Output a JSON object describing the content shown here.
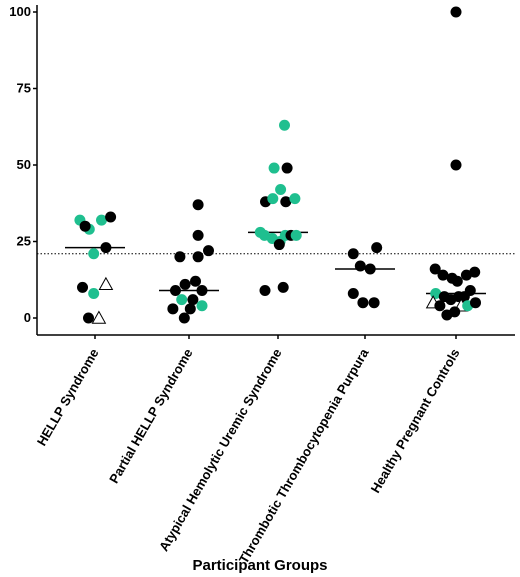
{
  "chart_data": {
    "type": "scatter",
    "title": "",
    "xlabel": "Participant Groups",
    "ylabel": "",
    "ylim": [
      0,
      100
    ],
    "yticks": [
      0,
      25,
      50,
      75,
      100
    ],
    "categories": [
      "HELLP Syndrome",
      "Partial HELLP Syndrome",
      "Atypical Hemolytic Uremic Syndrome",
      "Thrombotic Thrombocytopenia Purpura",
      "Healthy Pregnant Controls"
    ],
    "threshold": 21,
    "medians": [
      23,
      9,
      28,
      16,
      8
    ],
    "grid": false,
    "legend": "none",
    "colors": {
      "black": "#000000",
      "green": "#1fbf8f",
      "open": "#ffffff"
    },
    "points": [
      {
        "group": 0,
        "offset": -0.58,
        "y": 32,
        "marker": "green"
      },
      {
        "group": 0,
        "offset": -0.22,
        "y": 29,
        "marker": "green"
      },
      {
        "group": 0,
        "offset": -0.38,
        "y": 30,
        "marker": "black"
      },
      {
        "group": 0,
        "offset": 0.25,
        "y": 32,
        "marker": "green"
      },
      {
        "group": 0,
        "offset": 0.6,
        "y": 33,
        "marker": "black"
      },
      {
        "group": 0,
        "offset": -0.05,
        "y": 21,
        "marker": "green"
      },
      {
        "group": 0,
        "offset": 0.42,
        "y": 23,
        "marker": "black"
      },
      {
        "group": 0,
        "offset": -0.48,
        "y": 10,
        "marker": "black"
      },
      {
        "group": 0,
        "offset": 0.42,
        "y": 11,
        "marker": "open"
      },
      {
        "group": 0,
        "offset": -0.05,
        "y": 8,
        "marker": "green"
      },
      {
        "group": 0,
        "offset": -0.25,
        "y": 0,
        "marker": "black"
      },
      {
        "group": 0,
        "offset": 0.15,
        "y": 0,
        "marker": "open"
      },
      {
        "group": 1,
        "offset": 0.35,
        "y": 37,
        "marker": "black"
      },
      {
        "group": 1,
        "offset": 0.35,
        "y": 27,
        "marker": "black"
      },
      {
        "group": 1,
        "offset": 0.75,
        "y": 22,
        "marker": "black"
      },
      {
        "group": 1,
        "offset": -0.35,
        "y": 20,
        "marker": "black"
      },
      {
        "group": 1,
        "offset": 0.35,
        "y": 20,
        "marker": "black"
      },
      {
        "group": 1,
        "offset": -0.15,
        "y": 11,
        "marker": "black"
      },
      {
        "group": 1,
        "offset": 0.25,
        "y": 12,
        "marker": "black"
      },
      {
        "group": 1,
        "offset": -0.52,
        "y": 9,
        "marker": "black"
      },
      {
        "group": 1,
        "offset": 0.5,
        "y": 9,
        "marker": "black"
      },
      {
        "group": 1,
        "offset": -0.28,
        "y": 6,
        "marker": "green"
      },
      {
        "group": 1,
        "offset": 0.15,
        "y": 6,
        "marker": "black"
      },
      {
        "group": 1,
        "offset": -0.62,
        "y": 3,
        "marker": "black"
      },
      {
        "group": 1,
        "offset": 0.05,
        "y": 3,
        "marker": "black"
      },
      {
        "group": 1,
        "offset": 0.5,
        "y": 4,
        "marker": "green"
      },
      {
        "group": 1,
        "offset": -0.18,
        "y": 0,
        "marker": "black"
      },
      {
        "group": 2,
        "offset": 0.25,
        "y": 63,
        "marker": "green"
      },
      {
        "group": 2,
        "offset": -0.15,
        "y": 49,
        "marker": "green"
      },
      {
        "group": 2,
        "offset": 0.35,
        "y": 49,
        "marker": "black"
      },
      {
        "group": 2,
        "offset": 0.1,
        "y": 42,
        "marker": "green"
      },
      {
        "group": 2,
        "offset": -0.48,
        "y": 38,
        "marker": "black"
      },
      {
        "group": 2,
        "offset": -0.2,
        "y": 39,
        "marker": "green"
      },
      {
        "group": 2,
        "offset": 0.3,
        "y": 38,
        "marker": "black"
      },
      {
        "group": 2,
        "offset": 0.65,
        "y": 39,
        "marker": "green"
      },
      {
        "group": 2,
        "offset": -0.68,
        "y": 28,
        "marker": "green"
      },
      {
        "group": 2,
        "offset": -0.52,
        "y": 27,
        "marker": "green"
      },
      {
        "group": 2,
        "offset": -0.22,
        "y": 26,
        "marker": "green"
      },
      {
        "group": 2,
        "offset": 0.08,
        "y": 25,
        "marker": "green"
      },
      {
        "group": 2,
        "offset": 0.28,
        "y": 27,
        "marker": "green"
      },
      {
        "group": 2,
        "offset": 0.5,
        "y": 27,
        "marker": "black"
      },
      {
        "group": 2,
        "offset": 0.7,
        "y": 27,
        "marker": "green"
      },
      {
        "group": 2,
        "offset": 0.05,
        "y": 24,
        "marker": "black"
      },
      {
        "group": 2,
        "offset": -0.5,
        "y": 9,
        "marker": "black"
      },
      {
        "group": 2,
        "offset": 0.2,
        "y": 10,
        "marker": "black"
      },
      {
        "group": 3,
        "offset": -0.45,
        "y": 21,
        "marker": "black"
      },
      {
        "group": 3,
        "offset": 0.45,
        "y": 23,
        "marker": "black"
      },
      {
        "group": 3,
        "offset": -0.18,
        "y": 17,
        "marker": "black"
      },
      {
        "group": 3,
        "offset": 0.2,
        "y": 16,
        "marker": "black"
      },
      {
        "group": 3,
        "offset": -0.45,
        "y": 8,
        "marker": "black"
      },
      {
        "group": 3,
        "offset": -0.08,
        "y": 5,
        "marker": "black"
      },
      {
        "group": 3,
        "offset": 0.35,
        "y": 5,
        "marker": "black"
      },
      {
        "group": 4,
        "offset": 0.0,
        "y": 100,
        "marker": "black"
      },
      {
        "group": 4,
        "offset": 0.0,
        "y": 50,
        "marker": "black"
      },
      {
        "group": 4,
        "offset": -0.8,
        "y": 16,
        "marker": "black"
      },
      {
        "group": 4,
        "offset": -0.5,
        "y": 14,
        "marker": "black"
      },
      {
        "group": 4,
        "offset": 0.4,
        "y": 14,
        "marker": "black"
      },
      {
        "group": 4,
        "offset": 0.72,
        "y": 15,
        "marker": "black"
      },
      {
        "group": 4,
        "offset": -0.15,
        "y": 13,
        "marker": "black"
      },
      {
        "group": 4,
        "offset": 0.05,
        "y": 12,
        "marker": "black"
      },
      {
        "group": 4,
        "offset": 0.55,
        "y": 9,
        "marker": "black"
      },
      {
        "group": 4,
        "offset": -0.78,
        "y": 8,
        "marker": "green"
      },
      {
        "group": 4,
        "offset": -0.45,
        "y": 7,
        "marker": "black"
      },
      {
        "group": 4,
        "offset": -0.2,
        "y": 6,
        "marker": "black"
      },
      {
        "group": 4,
        "offset": 0.1,
        "y": 7,
        "marker": "black"
      },
      {
        "group": 4,
        "offset": 0.32,
        "y": 7,
        "marker": "black"
      },
      {
        "group": 4,
        "offset": -0.88,
        "y": 5,
        "marker": "open"
      },
      {
        "group": 4,
        "offset": -0.62,
        "y": 4,
        "marker": "black"
      },
      {
        "group": 4,
        "offset": 0.2,
        "y": 4,
        "marker": "open"
      },
      {
        "group": 4,
        "offset": 0.45,
        "y": 4,
        "marker": "green"
      },
      {
        "group": 4,
        "offset": 0.75,
        "y": 5,
        "marker": "black"
      },
      {
        "group": 4,
        "offset": -0.35,
        "y": 1,
        "marker": "black"
      },
      {
        "group": 4,
        "offset": -0.05,
        "y": 2,
        "marker": "black"
      }
    ]
  }
}
